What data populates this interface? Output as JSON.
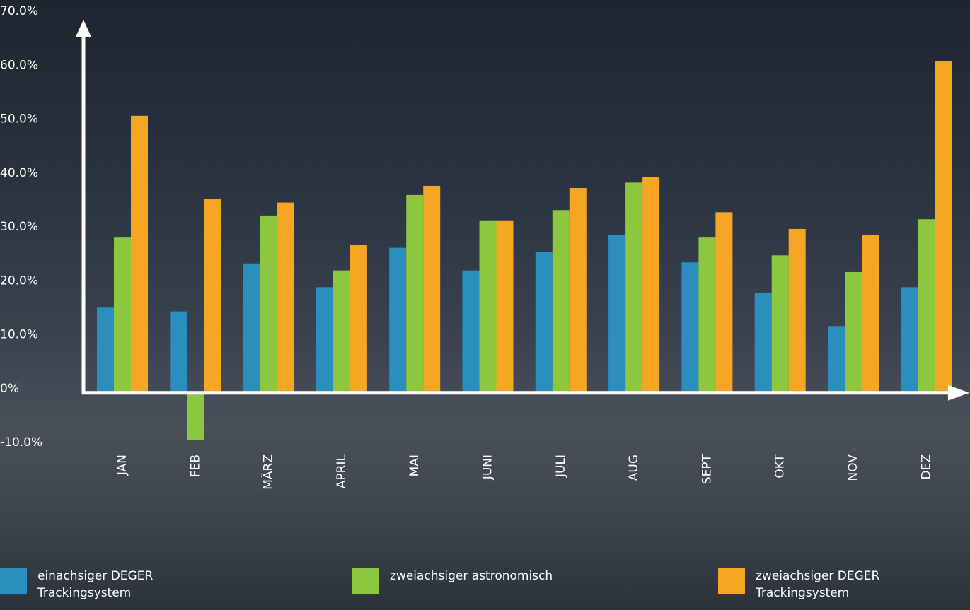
{
  "chart_data": {
    "type": "bar",
    "categories": [
      "JAN",
      "FEB",
      "MÄRZ",
      "APRIL",
      "MAI",
      "JUNI",
      "JULI",
      "AUG",
      "SEPT",
      "OKT",
      "NOV",
      "DEZ"
    ],
    "series": [
      {
        "name": "einachsiger DEGER Trackingsystem",
        "color": "#2a8fbd",
        "values": [
          15.8,
          15.1,
          24.0,
          19.6,
          26.9,
          22.7,
          26.1,
          29.3,
          24.2,
          18.6,
          12.4,
          19.6
        ]
      },
      {
        "name": "zweiachsiger astronomisch",
        "color": "#8dc63f",
        "values": [
          28.8,
          -8.8,
          32.9,
          22.7,
          36.7,
          32.0,
          33.9,
          39.0,
          28.8,
          25.5,
          22.4,
          32.2
        ]
      },
      {
        "name": "zweiachsiger DEGER Trackingsystem",
        "color": "#f5a623",
        "values": [
          51.4,
          35.9,
          35.3,
          27.5,
          38.4,
          32.0,
          38.0,
          40.1,
          33.5,
          30.4,
          29.3,
          61.6
        ]
      }
    ],
    "ylim": [
      -10,
      70
    ],
    "yticks": [
      {
        "value": -10,
        "label": "-10.0%"
      },
      {
        "value": 0,
        "label": "0%"
      },
      {
        "value": 10,
        "label": "10.0%"
      },
      {
        "value": 20,
        "label": "20.0%"
      },
      {
        "value": 30,
        "label": "30.0%"
      },
      {
        "value": 40,
        "label": "40.0%"
      },
      {
        "value": 50,
        "label": "50.0%"
      },
      {
        "value": 60,
        "label": "60.0%"
      },
      {
        "value": 70,
        "label": "70.0%"
      }
    ],
    "legend": "bottom"
  }
}
